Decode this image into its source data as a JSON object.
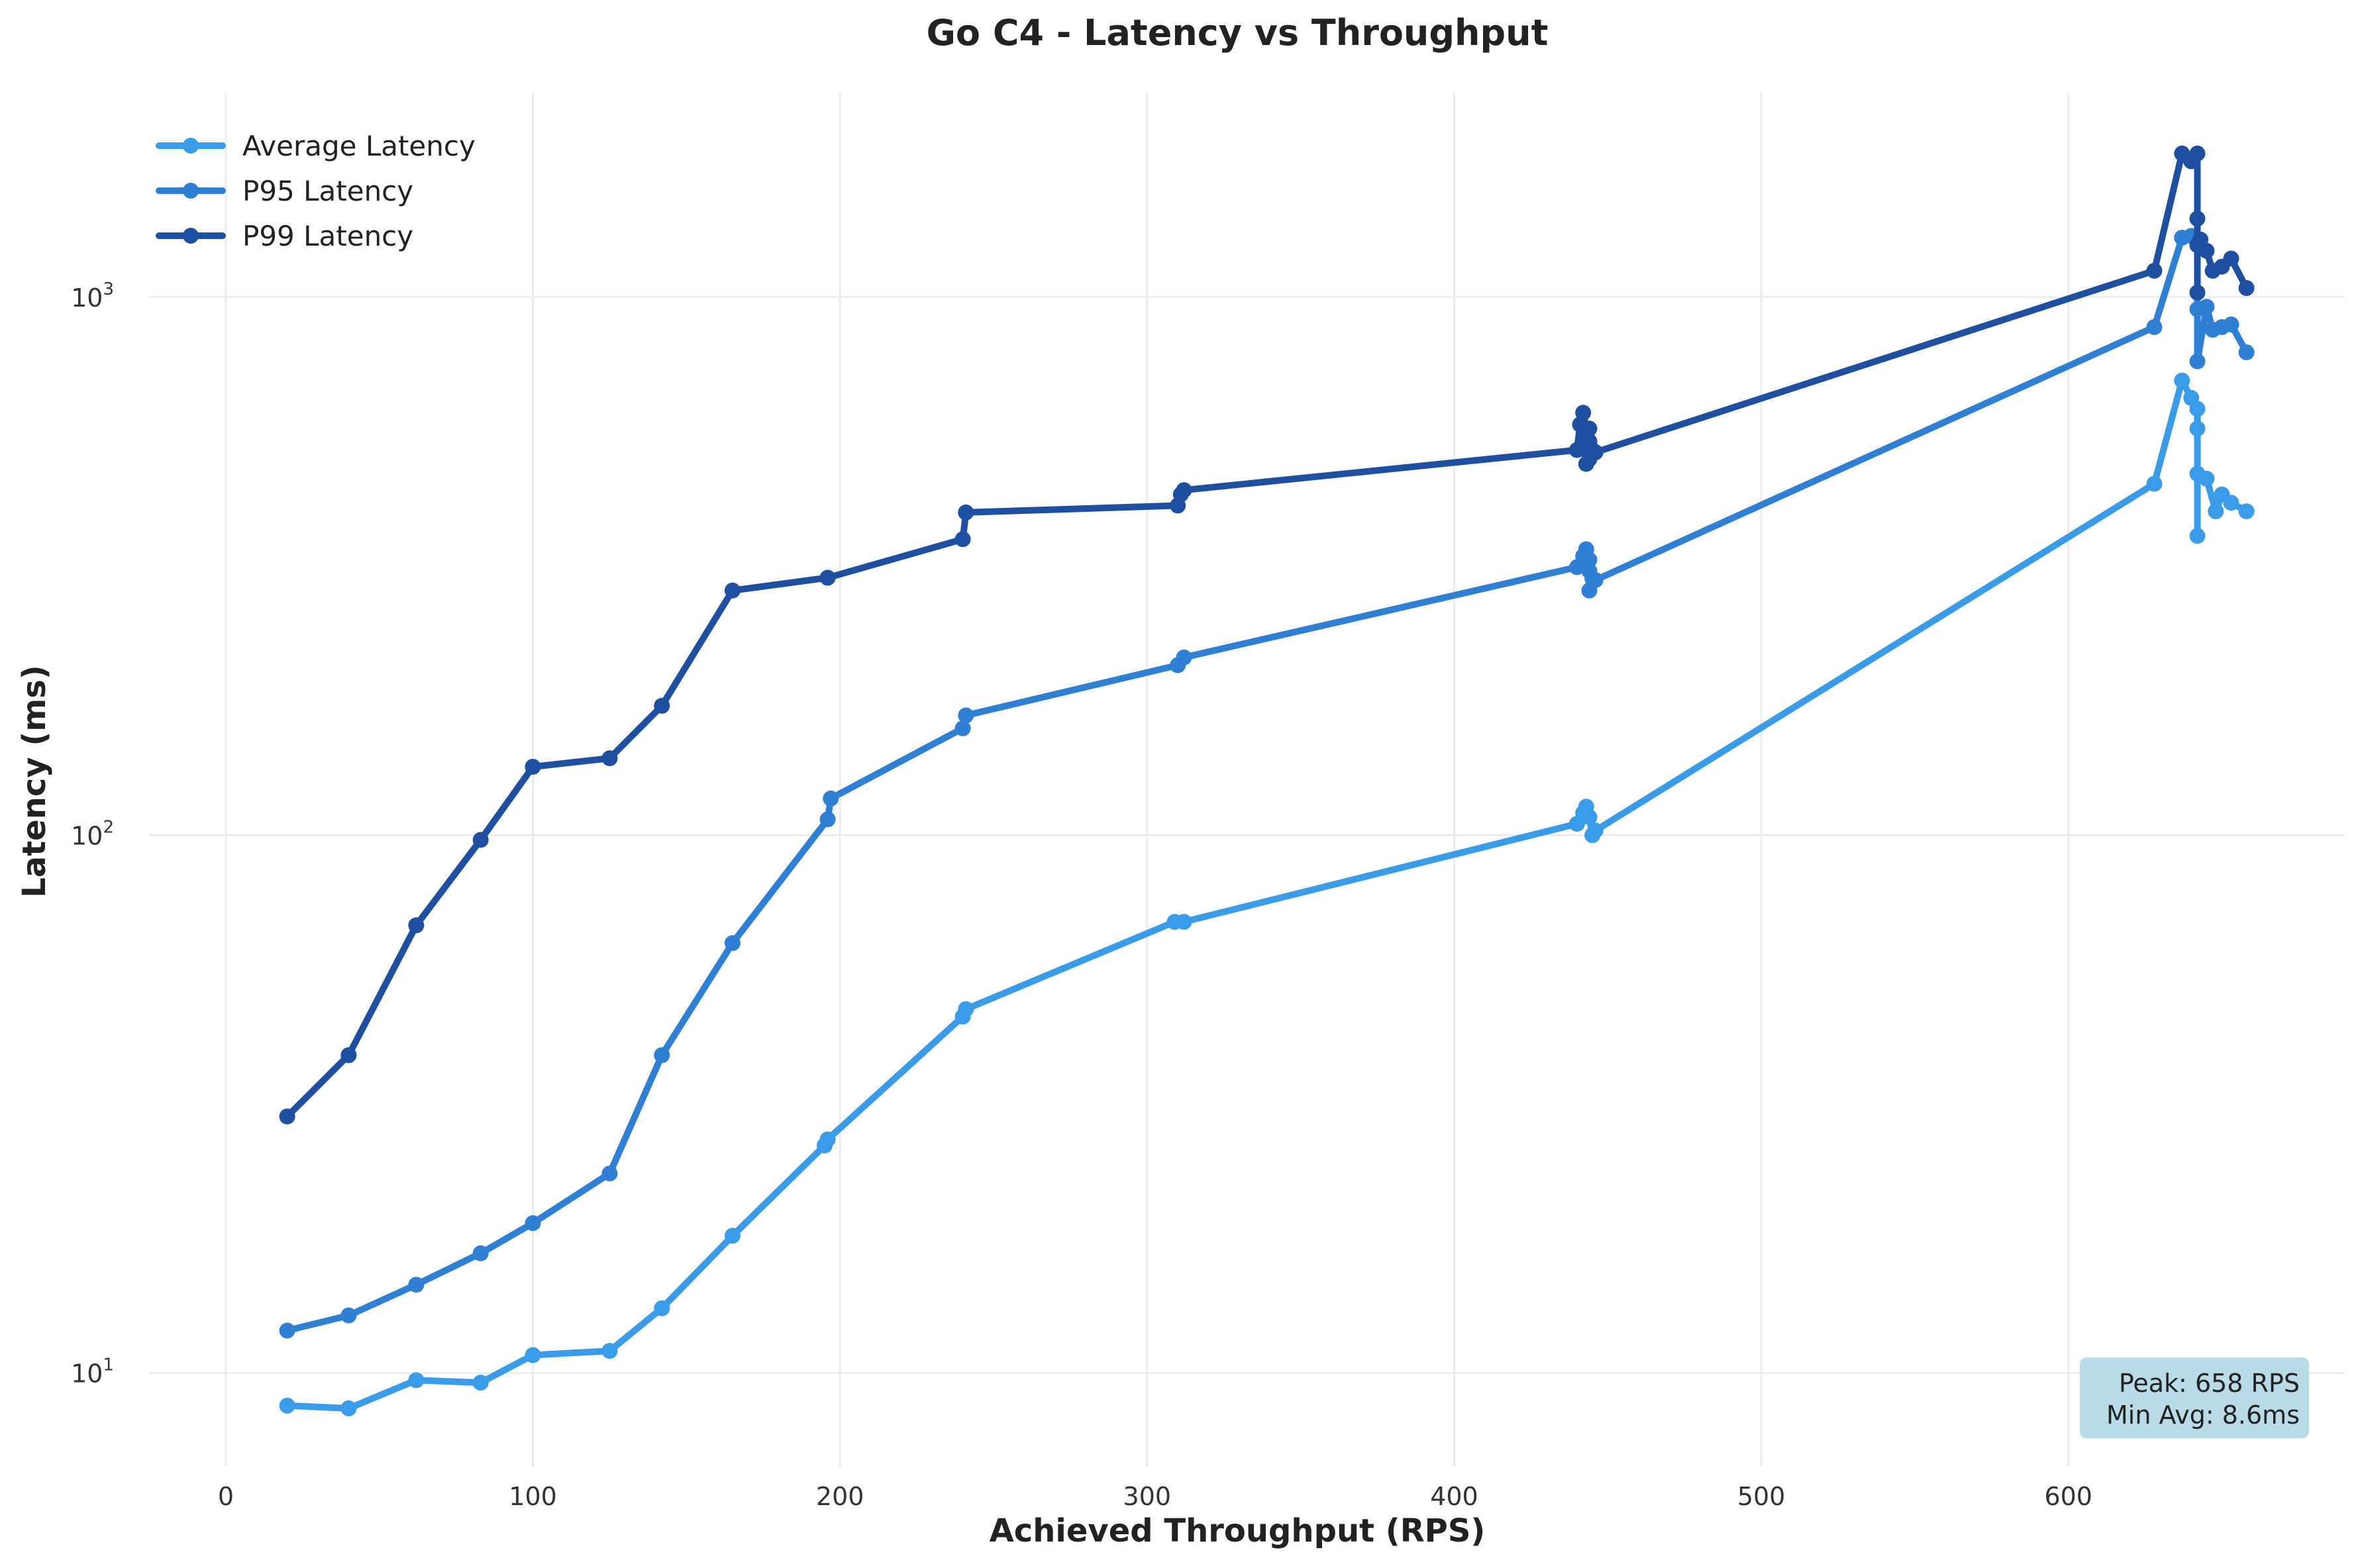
{
  "chart_data": {
    "type": "line",
    "title": "Go C4 - Latency vs Throughput",
    "xlabel": "Achieved Throughput (RPS)",
    "ylabel": "Latency (ms)",
    "xlim": [
      -25,
      690
    ],
    "ylim": [
      6.7,
      2400
    ],
    "yscale": "log",
    "grid": true,
    "legend_position": "top-left",
    "x_ticks": [
      {
        "value": 0,
        "label": "0"
      },
      {
        "value": 100,
        "label": "100"
      },
      {
        "value": 200,
        "label": "200"
      },
      {
        "value": 300,
        "label": "300"
      },
      {
        "value": 400,
        "label": "400"
      },
      {
        "value": 500,
        "label": "500"
      },
      {
        "value": 600,
        "label": "600"
      }
    ],
    "y_ticks": [
      {
        "value": 10,
        "base": "10",
        "exp": "1"
      },
      {
        "value": 100,
        "base": "10",
        "exp": "2"
      },
      {
        "value": 1000,
        "base": "10",
        "exp": "3"
      }
    ],
    "series": [
      {
        "name": "Average Latency",
        "color": "#3a9ce8",
        "points": [
          [
            20,
            8.7
          ],
          [
            40,
            8.6
          ],
          [
            62,
            9.7
          ],
          [
            83,
            9.6
          ],
          [
            100,
            10.8
          ],
          [
            125,
            11
          ],
          [
            142,
            13.2
          ],
          [
            165,
            18
          ],
          [
            195,
            26.5
          ],
          [
            196,
            27.2
          ],
          [
            240,
            46
          ],
          [
            241,
            47.5
          ],
          [
            309,
            69
          ],
          [
            312,
            69
          ],
          [
            440,
            105
          ],
          [
            442,
            110
          ],
          [
            443,
            113
          ],
          [
            444,
            108
          ],
          [
            445,
            100
          ],
          [
            446,
            102
          ],
          [
            628,
            450
          ],
          [
            637,
            700
          ],
          [
            640,
            650
          ],
          [
            642,
            620
          ],
          [
            642,
            570
          ],
          [
            642,
            360
          ],
          [
            642,
            470
          ],
          [
            645,
            460
          ],
          [
            648,
            400
          ],
          [
            650,
            430
          ],
          [
            653,
            415
          ],
          [
            658,
            400
          ]
        ]
      },
      {
        "name": "P95 Latency",
        "color": "#2f7fd4",
        "points": [
          [
            20,
            12
          ],
          [
            40,
            12.8
          ],
          [
            62,
            14.6
          ],
          [
            83,
            16.7
          ],
          [
            100,
            19
          ],
          [
            125,
            23.5
          ],
          [
            142,
            39
          ],
          [
            165,
            63
          ],
          [
            196,
            107
          ],
          [
            197,
            117
          ],
          [
            240,
            158
          ],
          [
            241,
            167
          ],
          [
            310,
            207
          ],
          [
            312,
            214
          ],
          [
            440,
            315
          ],
          [
            442,
            330
          ],
          [
            443,
            340
          ],
          [
            444,
            325
          ],
          [
            444,
            310
          ],
          [
            445,
            300
          ],
          [
            444,
            285
          ],
          [
            446,
            298
          ],
          [
            628,
            880
          ],
          [
            637,
            1290
          ],
          [
            640,
            1300
          ],
          [
            642,
            1250
          ],
          [
            642,
            950
          ],
          [
            642,
            760
          ],
          [
            645,
            960
          ],
          [
            647,
            870
          ],
          [
            650,
            880
          ],
          [
            653,
            890
          ],
          [
            658,
            790
          ]
        ]
      },
      {
        "name": "P99 Latency",
        "color": "#1f4fa0",
        "points": [
          [
            20,
            30
          ],
          [
            40,
            39
          ],
          [
            62,
            68
          ],
          [
            83,
            98
          ],
          [
            100,
            134
          ],
          [
            125,
            139
          ],
          [
            142,
            174
          ],
          [
            165,
            285
          ],
          [
            196,
            301
          ],
          [
            240,
            355
          ],
          [
            241,
            398
          ],
          [
            310,
            410
          ],
          [
            311,
            430
          ],
          [
            312,
            438
          ],
          [
            440,
            520
          ],
          [
            441,
            580
          ],
          [
            442,
            540
          ],
          [
            442,
            610
          ],
          [
            443,
            570
          ],
          [
            443,
            490
          ],
          [
            444,
            540
          ],
          [
            444,
            570
          ],
          [
            445,
            520
          ],
          [
            444,
            500
          ],
          [
            446,
            515
          ],
          [
            628,
            1120
          ],
          [
            637,
            1850
          ],
          [
            640,
            1790
          ],
          [
            642,
            1850
          ],
          [
            642,
            1400
          ],
          [
            642,
            1020
          ],
          [
            642,
            1250
          ],
          [
            643,
            1280
          ],
          [
            645,
            1220
          ],
          [
            647,
            1120
          ],
          [
            650,
            1140
          ],
          [
            653,
            1180
          ],
          [
            658,
            1040
          ]
        ]
      }
    ],
    "annotation": {
      "lines": [
        "Peak: 658 RPS",
        "Min Avg: 8.6ms"
      ],
      "background": "#b9dbe8"
    }
  }
}
